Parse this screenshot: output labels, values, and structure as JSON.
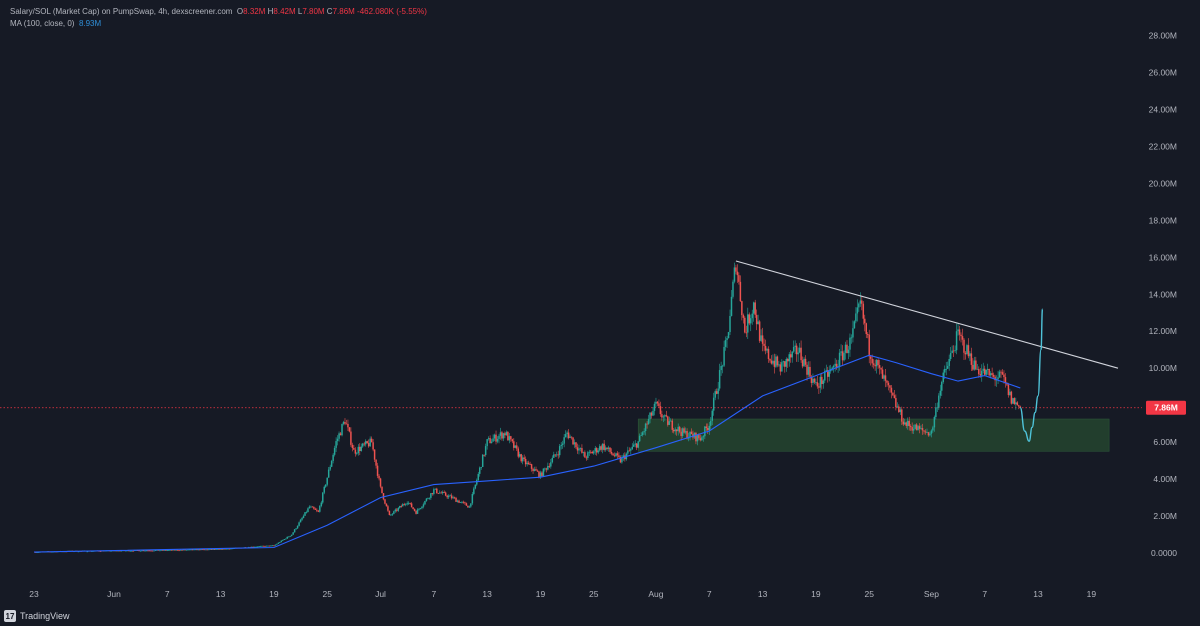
{
  "legend": {
    "title": "Salary/SOL (Market Cap) on PumpSwap, 4h, dexscreener.com",
    "open_key": "O",
    "open": "8.32M",
    "high_key": "H",
    "high": "8.42M",
    "low_key": "L",
    "low": "7.80M",
    "close_key": "C",
    "close": "7.86M",
    "change": "-462.080K (-5.55%)",
    "ma_label": "MA (100, close, 0)",
    "ma_value": "8.93M"
  },
  "footer": {
    "brand": "TradingView",
    "icon": "tradingview-logo-icon"
  },
  "colors": {
    "background": "#161a25",
    "up": "#26a69a",
    "down": "#ef5350",
    "ma": "#2962ff",
    "trendline": "#d1d4dc",
    "highlight": "#4fc3d9",
    "zone": "#24432f",
    "price_badge": "#f23645",
    "axis_text": "#b2b5be"
  },
  "chart_data": {
    "type": "candlestick",
    "y_unit": "market cap (SOL)",
    "ylim": [
      -1,
      29
    ],
    "y_ticks": [
      0,
      2,
      4,
      6,
      8,
      10,
      12,
      14,
      16,
      18,
      20,
      22,
      24,
      26,
      28
    ],
    "y_tick_labels": [
      "0.0000",
      "2.00M",
      "4.00M",
      "6.00M",
      "8.00M",
      "10.00M",
      "12.00M",
      "14.00M",
      "16.00M",
      "18.00M",
      "20.00M",
      "22.00M",
      "24.00M",
      "26.00M",
      "28.00M"
    ],
    "x_range": [
      "2025-05-23",
      "2025-09-22"
    ],
    "x_ticks": [
      "2025-05-23",
      "2025-06-01",
      "2025-06-07",
      "2025-06-13",
      "2025-06-19",
      "2025-06-25",
      "2025-07-01",
      "2025-07-07",
      "2025-07-13",
      "2025-07-19",
      "2025-07-25",
      "2025-08-01",
      "2025-08-07",
      "2025-08-13",
      "2025-08-19",
      "2025-08-25",
      "2025-09-01",
      "2025-09-07",
      "2025-09-13",
      "2025-09-19"
    ],
    "x_tick_labels": [
      "23",
      "Jun",
      "7",
      "13",
      "19",
      "25",
      "Jul",
      "7",
      "13",
      "19",
      "25",
      "Aug",
      "7",
      "13",
      "19",
      "25",
      "Sep",
      "7",
      "13",
      "19"
    ],
    "price_path": [
      [
        "2025-05-23",
        0.05
      ],
      [
        "2025-05-27",
        0.1
      ],
      [
        "2025-06-01",
        0.12
      ],
      [
        "2025-06-07",
        0.15
      ],
      [
        "2025-06-13",
        0.2
      ],
      [
        "2025-06-17",
        0.35
      ],
      [
        "2025-06-19",
        0.4
      ],
      [
        "2025-06-21",
        1.0
      ],
      [
        "2025-06-23",
        2.5
      ],
      [
        "2025-06-24",
        2.2
      ],
      [
        "2025-06-26",
        6.0
      ],
      [
        "2025-06-27",
        7.2
      ],
      [
        "2025-06-28",
        5.5
      ],
      [
        "2025-06-30",
        6.0
      ],
      [
        "2025-07-01",
        3.5
      ],
      [
        "2025-07-02",
        2.0
      ],
      [
        "2025-07-04",
        2.8
      ],
      [
        "2025-07-05",
        2.2
      ],
      [
        "2025-07-07",
        3.4
      ],
      [
        "2025-07-09",
        3.0
      ],
      [
        "2025-07-11",
        2.5
      ],
      [
        "2025-07-13",
        6.0
      ],
      [
        "2025-07-15",
        6.5
      ],
      [
        "2025-07-17",
        5.0
      ],
      [
        "2025-07-19",
        4.2
      ],
      [
        "2025-07-21",
        5.5
      ],
      [
        "2025-07-22",
        6.5
      ],
      [
        "2025-07-24",
        5.2
      ],
      [
        "2025-07-26",
        5.8
      ],
      [
        "2025-07-28",
        5.0
      ],
      [
        "2025-07-30",
        6.0
      ],
      [
        "2025-08-01",
        8.0
      ],
      [
        "2025-08-02",
        7.2
      ],
      [
        "2025-08-04",
        6.5
      ],
      [
        "2025-08-06",
        6.2
      ],
      [
        "2025-08-07",
        7.0
      ],
      [
        "2025-08-09",
        11.5
      ],
      [
        "2025-08-10",
        15.8
      ],
      [
        "2025-08-11",
        12.0
      ],
      [
        "2025-08-12",
        13.5
      ],
      [
        "2025-08-13",
        11.0
      ],
      [
        "2025-08-15",
        10.0
      ],
      [
        "2025-08-17",
        11.0
      ],
      [
        "2025-08-19",
        9.0
      ],
      [
        "2025-08-21",
        10.0
      ],
      [
        "2025-08-23",
        11.5
      ],
      [
        "2025-08-24",
        13.5
      ],
      [
        "2025-08-25",
        11.0
      ],
      [
        "2025-08-27",
        9.0
      ],
      [
        "2025-08-29",
        7.0
      ],
      [
        "2025-08-31",
        6.6
      ],
      [
        "2025-09-01",
        6.5
      ],
      [
        "2025-09-02",
        9.0
      ],
      [
        "2025-09-04",
        11.8
      ],
      [
        "2025-09-06",
        10.0
      ],
      [
        "2025-09-08",
        9.5
      ],
      [
        "2025-09-09",
        9.5
      ],
      [
        "2025-09-10",
        8.3
      ],
      [
        "2025-09-11",
        7.86
      ]
    ],
    "ma_line": {
      "name": "MA (100, close, 0)",
      "points": [
        [
          "2025-05-23",
          0.05
        ],
        [
          "2025-06-19",
          0.3
        ],
        [
          "2025-06-25",
          1.5
        ],
        [
          "2025-07-01",
          3.0
        ],
        [
          "2025-07-07",
          3.7
        ],
        [
          "2025-07-13",
          3.9
        ],
        [
          "2025-07-19",
          4.1
        ],
        [
          "2025-07-25",
          4.7
        ],
        [
          "2025-08-01",
          5.7
        ],
        [
          "2025-08-07",
          6.6
        ],
        [
          "2025-08-13",
          8.5
        ],
        [
          "2025-08-19",
          9.6
        ],
        [
          "2025-08-25",
          10.7
        ],
        [
          "2025-08-28",
          10.3
        ],
        [
          "2025-09-01",
          9.7
        ],
        [
          "2025-09-04",
          9.3
        ],
        [
          "2025-09-07",
          9.6
        ],
        [
          "2025-09-11",
          8.93
        ]
      ]
    },
    "trendline": {
      "points": [
        [
          "2025-08-10",
          15.8
        ],
        [
          "2025-09-22",
          10.0
        ]
      ]
    },
    "demand_zone": {
      "x": [
        "2025-07-30",
        "2025-09-21"
      ],
      "y": [
        5.5,
        7.25
      ]
    },
    "projection": {
      "points": [
        [
          "2025-09-11",
          7.86
        ],
        [
          "2025-09-11T12:00",
          6.6
        ],
        [
          "2025-09-12",
          6.05
        ],
        [
          "2025-09-12T08:00",
          6.8
        ],
        [
          "2025-09-12T16:00",
          7.6
        ],
        [
          "2025-09-13",
          8.5
        ],
        [
          "2025-09-13T08:00",
          11.0
        ],
        [
          "2025-09-13T12:00",
          13.2
        ]
      ]
    },
    "last_price": {
      "value": 7.86,
      "label": "7.86M"
    }
  }
}
